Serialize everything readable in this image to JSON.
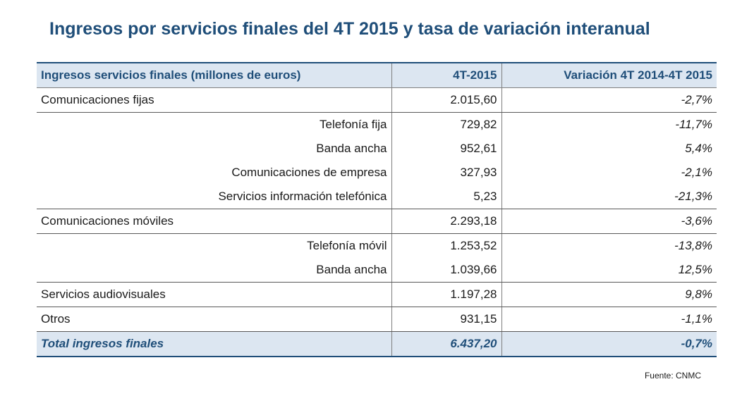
{
  "title": "Ingresos por servicios finales del 4T 2015 y tasa de variación interanual",
  "source": "Fuente: CNMC",
  "chart_data": {
    "type": "table",
    "columns": [
      "Ingresos servicios finales (millones de euros)",
      "4T-2015",
      "Variación 4T 2014-4T 2015"
    ],
    "rows": [
      {
        "label": "Comunicaciones fijas",
        "value": "2.015,60",
        "variation": "-2,7%",
        "level": "main"
      },
      {
        "label": "Telefonía fija",
        "value": "729,82",
        "variation": "-11,7%",
        "level": "sub"
      },
      {
        "label": "Banda ancha",
        "value": "952,61",
        "variation": "5,4%",
        "level": "sub"
      },
      {
        "label": "Comunicaciones de empresa",
        "value": "327,93",
        "variation": "-2,1%",
        "level": "sub"
      },
      {
        "label": "Servicios información telefónica",
        "value": "5,23",
        "variation": "-21,3%",
        "level": "sub"
      },
      {
        "label": "Comunicaciones móviles",
        "value": "2.293,18",
        "variation": "-3,6%",
        "level": "main"
      },
      {
        "label": "Telefonía móvil",
        "value": "1.253,52",
        "variation": "-13,8%",
        "level": "sub"
      },
      {
        "label": "Banda ancha",
        "value": "1.039,66",
        "variation": "12,5%",
        "level": "sub"
      },
      {
        "label": "Servicios audiovisuales",
        "value": "1.197,28",
        "variation": "9,8%",
        "level": "main"
      },
      {
        "label": "Otros",
        "value": "931,15",
        "variation": "-1,1%",
        "level": "main"
      }
    ],
    "total": {
      "label": "Total ingresos finales",
      "value": "6.437,20",
      "variation": "-0,7%"
    }
  }
}
